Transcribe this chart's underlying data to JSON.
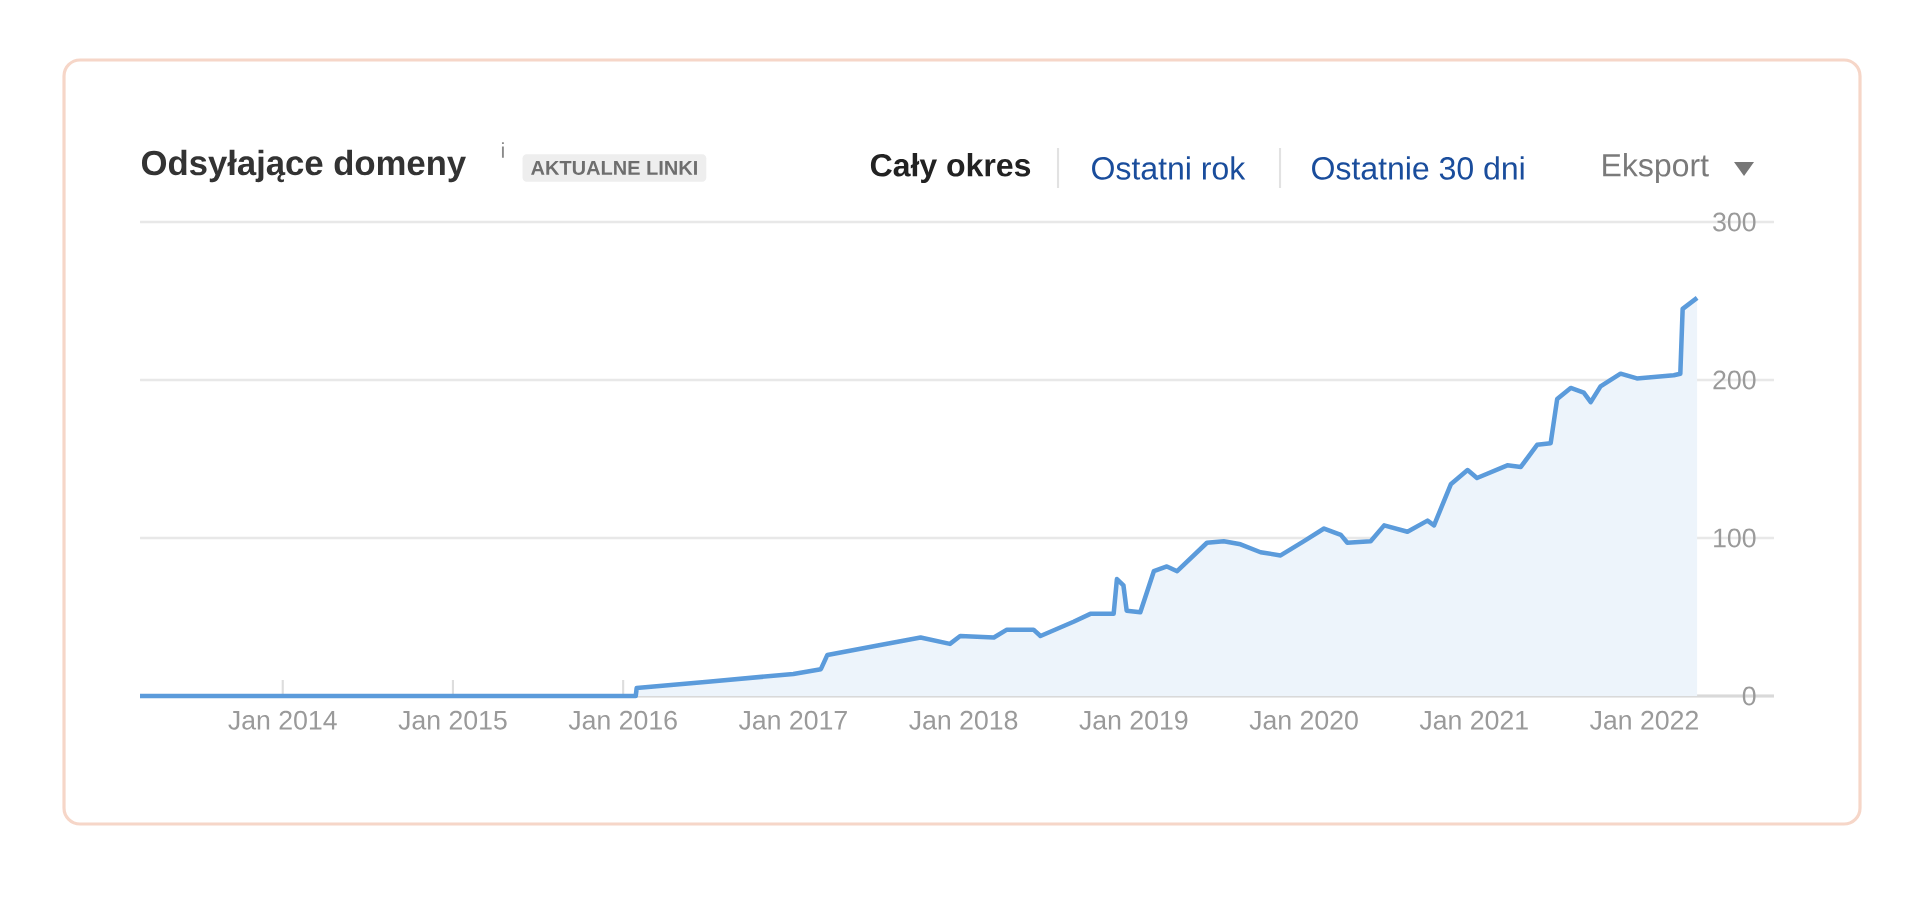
{
  "chart_data": {
    "type": "area",
    "title": "Odsyłające domeny",
    "subtitle": "AKTUALNE LINKI",
    "annotations": [
      "i",
      "Cały okres",
      "Ostatni rok",
      "Ostatnie 30 dni",
      "Eksport"
    ],
    "x": [
      "2013-03-01",
      "2016-01-28",
      "2016-01-30",
      "2016-07-01",
      "2017-01-01",
      "2017-03-01",
      "2017-03-15",
      "2017-07-01",
      "2017-10-01",
      "2017-12-03",
      "2017-12-25",
      "2018-03-07",
      "2018-04-04",
      "2018-05-31",
      "2018-06-15",
      "2018-08-25",
      "2018-09-30",
      "2018-11-19",
      "2018-11-26",
      "2018-12-10",
      "2018-12-17",
      "2019-01-15",
      "2019-02-13",
      "2019-03-13",
      "2019-04-04",
      "2019-06-07",
      "2019-07-13",
      "2019-08-18",
      "2019-09-30",
      "2019-11-12",
      "2020-01-01",
      "2020-02-13",
      "2020-03-20",
      "2020-04-03",
      "2020-05-23",
      "2020-06-21",
      "2020-08-10",
      "2020-09-22",
      "2020-10-06",
      "2020-11-11",
      "2020-12-17",
      "2021-01-07",
      "2021-03-13",
      "2021-04-11",
      "2021-05-16",
      "2021-06-14",
      "2021-06-28",
      "2021-07-27",
      "2021-08-24",
      "2021-09-08",
      "2021-09-29",
      "2021-11-11",
      "2021-12-16",
      "2022-03-05",
      "2022-03-19",
      "2022-03-24",
      "2022-04-24"
    ],
    "series": [
      {
        "color": "#5b9bdb",
        "values": [
          0,
          0,
          5,
          9,
          14,
          17,
          26,
          32,
          37,
          33,
          38,
          37,
          42,
          42,
          38,
          47,
          52,
          52,
          74,
          70,
          54,
          53,
          79,
          82,
          79,
          97,
          98,
          96,
          91,
          89,
          98,
          106,
          102,
          97,
          98,
          108,
          104,
          111,
          108,
          134,
          143,
          138,
          146,
          145,
          159,
          160,
          188,
          195,
          192,
          186,
          196,
          204,
          201,
          203,
          204,
          245,
          252
        ]
      }
    ],
    "xlim": [
      "2013-03-01",
      "2022-10-06"
    ],
    "xticks": [
      {
        "value": "2014-01-01",
        "label": "Jan 2014"
      },
      {
        "value": "2015-01-01",
        "label": "Jan 2015"
      },
      {
        "value": "2016-01-01",
        "label": "Jan 2016"
      },
      {
        "value": "2017-01-01",
        "label": "Jan 2017"
      },
      {
        "value": "2018-01-01",
        "label": "Jan 2018"
      },
      {
        "value": "2019-01-01",
        "label": "Jan 2019"
      },
      {
        "value": "2020-01-01",
        "label": "Jan 2020"
      },
      {
        "value": "2021-01-01",
        "label": "Jan 2021"
      },
      {
        "value": "2022-01-01",
        "label": "Jan 2022"
      }
    ],
    "ylim": [
      0,
      300
    ],
    "yticks": [
      0,
      100,
      200,
      300
    ],
    "grid": "y"
  }
}
